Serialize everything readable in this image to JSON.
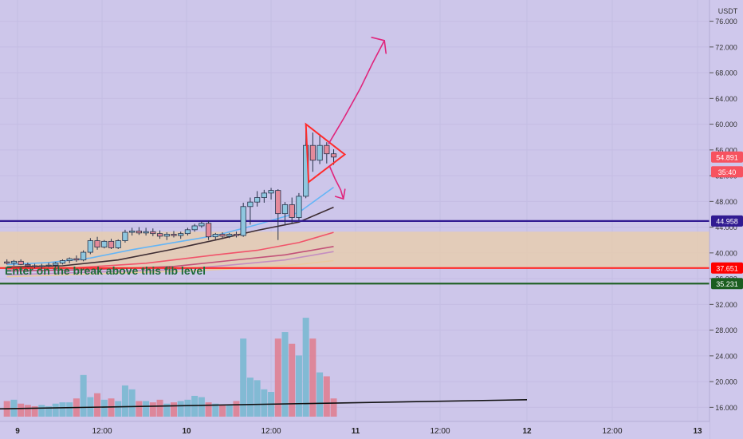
{
  "currency": "USDT",
  "price_axis": {
    "ticks": [
      "76.000",
      "72.000",
      "68.000",
      "64.000",
      "60.000",
      "56.000",
      "52.000",
      "48.000",
      "44.000",
      "40.000",
      "36.000",
      "32.000",
      "28.000",
      "24.000",
      "20.000",
      "16.000"
    ]
  },
  "time_axis": {
    "ticks": [
      "9",
      "12:00",
      "10",
      "12:00",
      "11",
      "12:00",
      "12",
      "12:00",
      "13"
    ]
  },
  "price_labels": [
    {
      "text": "54.891",
      "bg": "#f7525f",
      "fg": "#ffffff",
      "value": 54.891
    },
    {
      "text": "35:40",
      "bg": "#f7525f",
      "fg": "#ffffff",
      "value": 52.6
    },
    {
      "text": "44.958",
      "bg": "#311b92",
      "fg": "#ffffff",
      "value": 44.958
    },
    {
      "text": "37.651",
      "bg": "#ff0000",
      "fg": "#ffffff",
      "value": 37.651
    },
    {
      "text": "35.231",
      "bg": "#1b5e20",
      "fg": "#ffffff",
      "value": 35.231
    }
  ],
  "annotation": {
    "text": "Enter on the break above this fib level",
    "color": "#1e6b3a"
  },
  "colors": {
    "background": "#cdc6ea",
    "up": "#8fc7df",
    "down": "#e48a9a",
    "wick": "#26324a",
    "fib_zone": "#e6ccb0"
  },
  "chart_data": {
    "type": "candlestick",
    "candles": [
      {
        "o": 38.6,
        "h": 39.0,
        "l": 38.2,
        "c": 38.4
      },
      {
        "o": 38.4,
        "h": 38.9,
        "l": 38.0,
        "c": 38.7
      },
      {
        "o": 38.7,
        "h": 39.0,
        "l": 38.1,
        "c": 38.2
      },
      {
        "o": 38.2,
        "h": 38.5,
        "l": 37.8,
        "c": 38.0
      },
      {
        "o": 38.0,
        "h": 38.3,
        "l": 37.6,
        "c": 37.9
      },
      {
        "o": 37.9,
        "h": 38.3,
        "l": 37.5,
        "c": 38.0
      },
      {
        "o": 38.0,
        "h": 38.5,
        "l": 37.8,
        "c": 38.1
      },
      {
        "o": 38.1,
        "h": 38.6,
        "l": 37.7,
        "c": 38.4
      },
      {
        "o": 38.4,
        "h": 39.0,
        "l": 38.2,
        "c": 38.8
      },
      {
        "o": 38.8,
        "h": 39.3,
        "l": 38.4,
        "c": 39.1
      },
      {
        "o": 39.1,
        "h": 39.6,
        "l": 38.6,
        "c": 38.9
      },
      {
        "o": 38.9,
        "h": 40.4,
        "l": 38.7,
        "c": 40.1
      },
      {
        "o": 40.1,
        "h": 42.3,
        "l": 39.8,
        "c": 41.9
      },
      {
        "o": 41.9,
        "h": 42.5,
        "l": 40.5,
        "c": 40.9
      },
      {
        "o": 40.9,
        "h": 42.0,
        "l": 40.7,
        "c": 41.8
      },
      {
        "o": 41.8,
        "h": 42.2,
        "l": 40.6,
        "c": 40.8
      },
      {
        "o": 40.8,
        "h": 42.1,
        "l": 40.6,
        "c": 41.9
      },
      {
        "o": 41.9,
        "h": 43.6,
        "l": 41.6,
        "c": 43.2
      },
      {
        "o": 43.2,
        "h": 43.9,
        "l": 42.7,
        "c": 43.4
      },
      {
        "o": 43.4,
        "h": 44.0,
        "l": 42.8,
        "c": 43.1
      },
      {
        "o": 43.1,
        "h": 43.9,
        "l": 42.7,
        "c": 43.3
      },
      {
        "o": 43.3,
        "h": 43.8,
        "l": 42.6,
        "c": 43.0
      },
      {
        "o": 43.0,
        "h": 43.5,
        "l": 42.2,
        "c": 42.6
      },
      {
        "o": 42.6,
        "h": 43.2,
        "l": 42.0,
        "c": 42.9
      },
      {
        "o": 42.9,
        "h": 43.4,
        "l": 42.4,
        "c": 42.7
      },
      {
        "o": 42.7,
        "h": 43.3,
        "l": 42.2,
        "c": 43.0
      },
      {
        "o": 43.0,
        "h": 43.9,
        "l": 42.7,
        "c": 43.6
      },
      {
        "o": 43.6,
        "h": 44.5,
        "l": 43.3,
        "c": 44.2
      },
      {
        "o": 44.2,
        "h": 44.9,
        "l": 43.9,
        "c": 44.6
      },
      {
        "o": 44.6,
        "h": 45.0,
        "l": 42.0,
        "c": 42.5
      },
      {
        "o": 42.5,
        "h": 43.1,
        "l": 42.1,
        "c": 42.9
      },
      {
        "o": 42.9,
        "h": 43.2,
        "l": 42.3,
        "c": 42.6
      },
      {
        "o": 42.6,
        "h": 43.1,
        "l": 42.3,
        "c": 42.9
      },
      {
        "o": 42.9,
        "h": 43.3,
        "l": 42.4,
        "c": 42.7
      },
      {
        "o": 42.7,
        "h": 47.8,
        "l": 42.5,
        "c": 47.2
      },
      {
        "o": 47.2,
        "h": 48.6,
        "l": 44.4,
        "c": 47.9
      },
      {
        "o": 47.9,
        "h": 49.6,
        "l": 47.2,
        "c": 48.6
      },
      {
        "o": 48.6,
        "h": 49.8,
        "l": 47.8,
        "c": 49.3
      },
      {
        "o": 49.3,
        "h": 50.1,
        "l": 48.3,
        "c": 49.7
      },
      {
        "o": 49.7,
        "h": 49.9,
        "l": 42.0,
        "c": 46.1
      },
      {
        "o": 46.1,
        "h": 47.9,
        "l": 44.3,
        "c": 47.5
      },
      {
        "o": 47.5,
        "h": 48.6,
        "l": 44.6,
        "c": 45.5
      },
      {
        "o": 45.5,
        "h": 49.3,
        "l": 45.0,
        "c": 48.8
      },
      {
        "o": 48.8,
        "h": 59.8,
        "l": 48.5,
        "c": 56.7
      },
      {
        "o": 56.7,
        "h": 58.7,
        "l": 52.6,
        "c": 54.4
      },
      {
        "o": 54.4,
        "h": 58.3,
        "l": 53.8,
        "c": 56.7
      },
      {
        "o": 56.7,
        "h": 57.2,
        "l": 53.9,
        "c": 55.4
      },
      {
        "o": 55.4,
        "h": 56.1,
        "l": 53.7,
        "c": 54.891
      }
    ],
    "volume_scale_max": 8,
    "volumes": [
      1.2,
      1.3,
      1.0,
      0.9,
      0.8,
      0.9,
      0.8,
      1.0,
      1.1,
      1.1,
      1.4,
      3.2,
      1.5,
      1.8,
      1.3,
      1.4,
      1.2,
      2.4,
      2.1,
      1.2,
      1.2,
      1.1,
      1.3,
      1.0,
      1.1,
      1.2,
      1.3,
      1.6,
      1.5,
      1.1,
      1.0,
      0.9,
      0.9,
      1.2,
      6.0,
      3.0,
      2.8,
      2.1,
      1.9,
      6.0,
      6.5,
      5.6,
      4.7,
      7.6,
      6.0,
      3.4,
      3.1,
      1.4
    ],
    "volume_ma": {
      "from": 0.6,
      "to": 1.3
    },
    "horizontal_levels": [
      {
        "value": 44.958,
        "color": "#311b92"
      },
      {
        "value": 37.651,
        "color": "#ff2a2a"
      },
      {
        "value": 35.231,
        "color": "#1b5e20"
      }
    ],
    "fib_zone": {
      "from": 37.651,
      "to": 43.3
    },
    "moving_averages": [
      {
        "color": "#64b5f6",
        "points": [
          [
            0,
            38.2
          ],
          [
            6,
            38.5
          ],
          [
            12,
            39.2
          ],
          [
            18,
            40.5
          ],
          [
            24,
            41.6
          ],
          [
            30,
            42.7
          ],
          [
            36,
            44.4
          ],
          [
            42,
            46.3
          ],
          [
            47,
            50.2
          ]
        ]
      },
      {
        "color": "#3e2d33",
        "points": [
          [
            0,
            37.8
          ],
          [
            8,
            38.0
          ],
          [
            16,
            38.9
          ],
          [
            24,
            40.6
          ],
          [
            30,
            42.0
          ],
          [
            36,
            43.5
          ],
          [
            42,
            44.8
          ],
          [
            47,
            47.1
          ]
        ]
      },
      {
        "color": "#f1536a",
        "points": [
          [
            0,
            37.5
          ],
          [
            10,
            37.7
          ],
          [
            20,
            38.4
          ],
          [
            30,
            39.7
          ],
          [
            36,
            40.4
          ],
          [
            42,
            41.6
          ],
          [
            47,
            43.2
          ]
        ]
      },
      {
        "color": "#c35178",
        "points": [
          [
            0,
            37.2
          ],
          [
            12,
            37.4
          ],
          [
            24,
            37.9
          ],
          [
            32,
            38.8
          ],
          [
            40,
            39.7
          ],
          [
            47,
            41.0
          ]
        ]
      },
      {
        "color": "#c48ec0",
        "points": [
          [
            0,
            36.6
          ],
          [
            12,
            37.0
          ],
          [
            24,
            37.4
          ],
          [
            32,
            38.1
          ],
          [
            40,
            38.9
          ],
          [
            47,
            40.2
          ]
        ]
      },
      {
        "color": "#eac9a0",
        "points": [
          [
            0,
            36.3
          ],
          [
            14,
            36.8
          ],
          [
            26,
            37.2
          ],
          [
            34,
            37.6
          ],
          [
            42,
            38.2
          ],
          [
            47,
            38.8
          ]
        ]
      }
    ],
    "drawings": {
      "triangle": {
        "color": "#ff2b2b",
        "points": [
          [
            43,
            60.0
          ],
          [
            48.6,
            55.3
          ],
          [
            43.4,
            51.0
          ]
        ]
      },
      "arrow_up": {
        "color": "#e0257c",
        "points": [
          [
            46.3,
            57.0
          ],
          [
            48.5,
            61.0
          ],
          [
            50.8,
            65.5
          ],
          [
            52.6,
            69.5
          ],
          [
            54.3,
            73.0
          ]
        ]
      },
      "arrow_down": {
        "color": "#e0257c",
        "points": [
          [
            46.4,
            53.5
          ],
          [
            47.2,
            51.5
          ],
          [
            48.0,
            49.8
          ],
          [
            48.4,
            48.4
          ]
        ]
      }
    }
  }
}
